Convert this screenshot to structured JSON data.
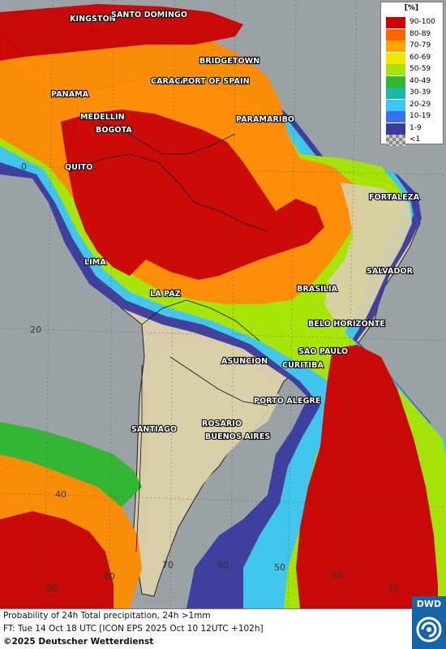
{
  "legend": {
    "unit": "[%]",
    "items": [
      {
        "label": "90-100",
        "color": "#cc0000"
      },
      {
        "label": "80-89",
        "color": "#ff6600"
      },
      {
        "label": "70-79",
        "color": "#ffa500"
      },
      {
        "label": "60-69",
        "color": "#f2e600"
      },
      {
        "label": "50-59",
        "color": "#a5e600"
      },
      {
        "label": "40-49",
        "color": "#2fb82f"
      },
      {
        "label": "30-39",
        "color": "#1bb8a5"
      },
      {
        "label": "20-29",
        "color": "#3cc8f0"
      },
      {
        "label": "10-19",
        "color": "#3c6ef0"
      },
      {
        "label": "1-9",
        "color": "#3a3a9e"
      },
      {
        "label": "<1",
        "color": "checker"
      }
    ]
  },
  "cities": [
    "KINGSTON",
    "SANTO DOMINGO",
    "BRIDGETOWN",
    "CARACAS",
    "PORT OF SPAIN",
    "PANAMA",
    "MEDELLIN",
    "BOGOTA",
    "PARAMARIBO",
    "QUITO",
    "FORTALEZA",
    "LIMA",
    "SALVADOR",
    "BRASILIA",
    "LA PAZ",
    "BELO HORIZONTE",
    "SAO PAULO",
    "ASUNCION",
    "CURITIBA",
    "PORTO ALEGRE",
    "SANTIAGO",
    "ROSARIO",
    "BUENOS AIRES"
  ],
  "grid_labels": {
    "lat": [
      "0",
      "20",
      "40"
    ],
    "lon": [
      "90",
      "80",
      "70",
      "60",
      "50",
      "40",
      "30"
    ]
  },
  "footer": {
    "line1": "Probability of 24h Total precipitation, 24h >1mm",
    "line2": "FT: Tue 14 Oct 18 UTC [ICON EPS 2025 Oct 10 12UTC +102h]",
    "line3": "©2025 Deutscher Wetterdienst"
  },
  "logo": {
    "text": "DWD"
  }
}
